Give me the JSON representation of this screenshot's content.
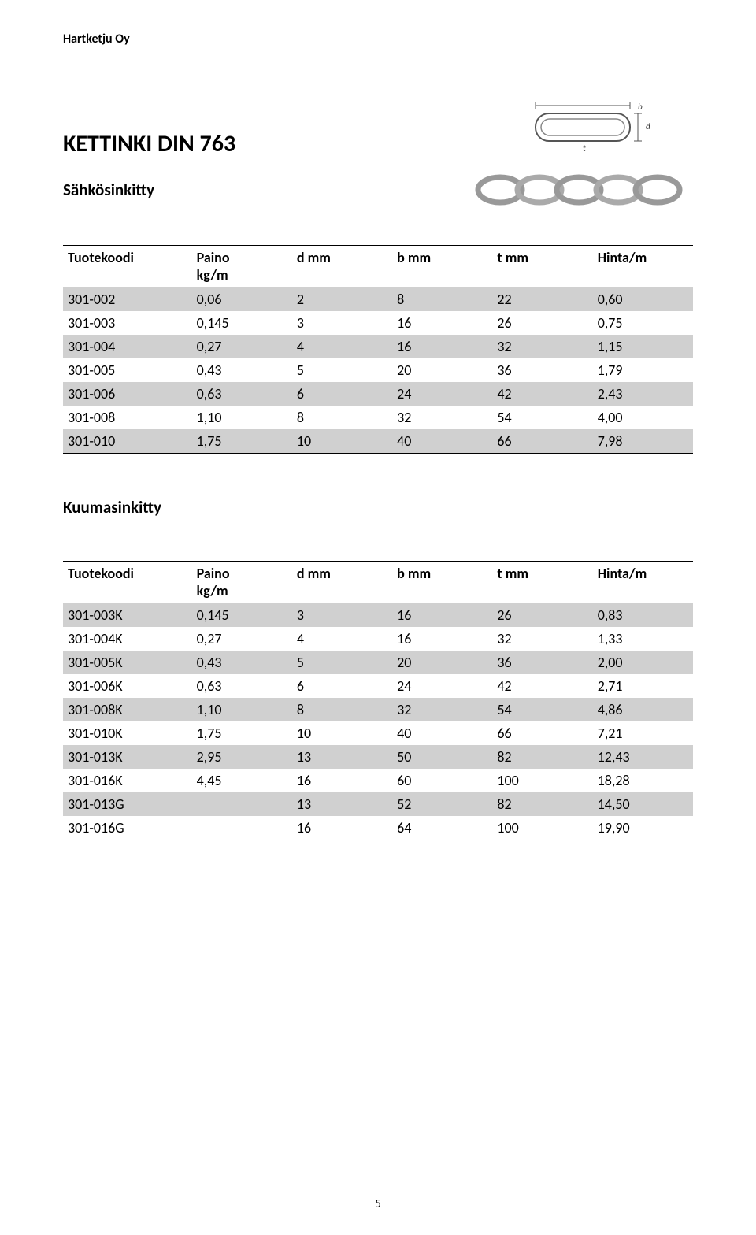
{
  "company": "Hartketju Oy",
  "page_title": "KETTINKI DIN 763",
  "section1_title": "Sähkösinkitty",
  "section2_title": "Kuumasinkitty",
  "headers": {
    "col1_line1": "Tuotekoodi",
    "col1_line2": "",
    "col2_line1": "Paino",
    "col2_line2": "kg/m",
    "col3": "d mm",
    "col4": "b mm",
    "col5": "t mm",
    "col6": "Hinta/m"
  },
  "table1_rows": [
    [
      "301-002",
      "0,06",
      "2",
      "8",
      "22",
      "0,60"
    ],
    [
      "301-003",
      "0,145",
      "3",
      "16",
      "26",
      "0,75"
    ],
    [
      "301-004",
      "0,27",
      "4",
      "16",
      "32",
      "1,15"
    ],
    [
      "301-005",
      "0,43",
      "5",
      "20",
      "36",
      "1,79"
    ],
    [
      "301-006",
      "0,63",
      "6",
      "24",
      "42",
      "2,43"
    ],
    [
      "301-008",
      "1,10",
      "8",
      "32",
      "54",
      "4,00"
    ],
    [
      "301-010",
      "1,75",
      "10",
      "40",
      "66",
      "7,98"
    ]
  ],
  "table2_rows": [
    [
      "301-003K",
      "0,145",
      "3",
      "16",
      "26",
      "0,83"
    ],
    [
      "301-004K",
      "0,27",
      "4",
      "16",
      "32",
      "1,33"
    ],
    [
      "301-005K",
      "0,43",
      "5",
      "20",
      "36",
      "2,00"
    ],
    [
      "301-006K",
      "0,63",
      "6",
      "24",
      "42",
      "2,71"
    ],
    [
      "301-008K",
      "1,10",
      "8",
      "32",
      "54",
      "4,86"
    ],
    [
      "301-010K",
      "1,75",
      "10",
      "40",
      "66",
      "7,21"
    ],
    [
      "301-013K",
      "2,95",
      "13",
      "50",
      "82",
      "12,43"
    ],
    [
      "301-016K",
      "4,45",
      "16",
      "60",
      "100",
      "18,28"
    ],
    [
      "301-013G",
      "",
      "13",
      "52",
      "82",
      "14,50"
    ],
    [
      "301-016G",
      "",
      "16",
      "64",
      "100",
      "19,90"
    ]
  ],
  "page_number": "5",
  "colors": {
    "shade": "#d0d0d0",
    "border": "#000000",
    "bg": "#ffffff"
  },
  "col_widths_pct": [
    18,
    14,
    14,
    14,
    14,
    14
  ]
}
